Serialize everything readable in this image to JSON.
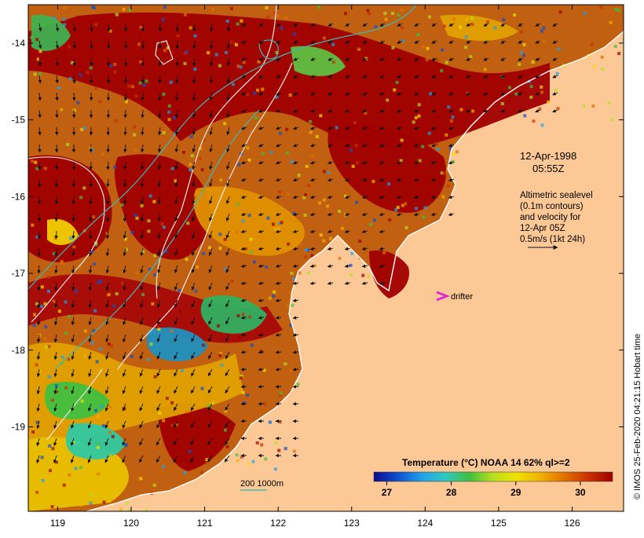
{
  "map": {
    "lon_range": [
      118.6,
      126.7
    ],
    "lat_range": [
      -20.1,
      -13.5
    ],
    "lon_ticks": [
      {
        "value": 119,
        "label": "119"
      },
      {
        "value": 120,
        "label": "120"
      },
      {
        "value": 121,
        "label": "121"
      },
      {
        "value": 122,
        "label": "122"
      },
      {
        "value": 123,
        "label": "123"
      },
      {
        "value": 124,
        "label": "124"
      },
      {
        "value": 125,
        "label": "125"
      },
      {
        "value": 126,
        "label": "126"
      }
    ],
    "lat_ticks": [
      {
        "value": -14,
        "label": "-14"
      },
      {
        "value": -15,
        "label": "-15"
      },
      {
        "value": -16,
        "label": "-16"
      },
      {
        "value": -17,
        "label": "-17"
      },
      {
        "value": -18,
        "label": "-18"
      },
      {
        "value": -19,
        "label": "-19"
      }
    ],
    "colors": {
      "land": "#fcc896",
      "coast": "#ffffff",
      "contour_200m": "#40b8b8",
      "sealevel_contour": "#e8e8e8",
      "vector": "#111111",
      "drifter": "#e020e0"
    }
  },
  "annotation": {
    "date": "12-Apr-1998",
    "time": "05:55Z",
    "lines": [
      "Altimetric sealevel",
      "(0.1m contours)",
      "and velocity for",
      "12-Apr 05Z",
      "0.5m/s (1kt 24h)"
    ]
  },
  "drifter": {
    "label": "drifter",
    "lon": 124.2,
    "lat": -17.3
  },
  "isobath_legend": {
    "label": "200  1000m"
  },
  "colorbar": {
    "title": "Temperature (°C) NOAA 14 62% ql>=2",
    "min": 26.8,
    "max": 30.5,
    "ticks": [
      {
        "value": 27,
        "label": "27"
      },
      {
        "value": 28,
        "label": "28"
      },
      {
        "value": 29,
        "label": "29"
      },
      {
        "value": 30,
        "label": "30"
      }
    ],
    "stops": [
      "#0a0a8c",
      "#1050d0",
      "#20a0e8",
      "#30c8c0",
      "#40c040",
      "#b8e020",
      "#f0e000",
      "#f0b000",
      "#e07000",
      "#c83000",
      "#a00000"
    ]
  },
  "credit": "© IMOS 25-Feb-2020 04:21:15 Hobart time"
}
